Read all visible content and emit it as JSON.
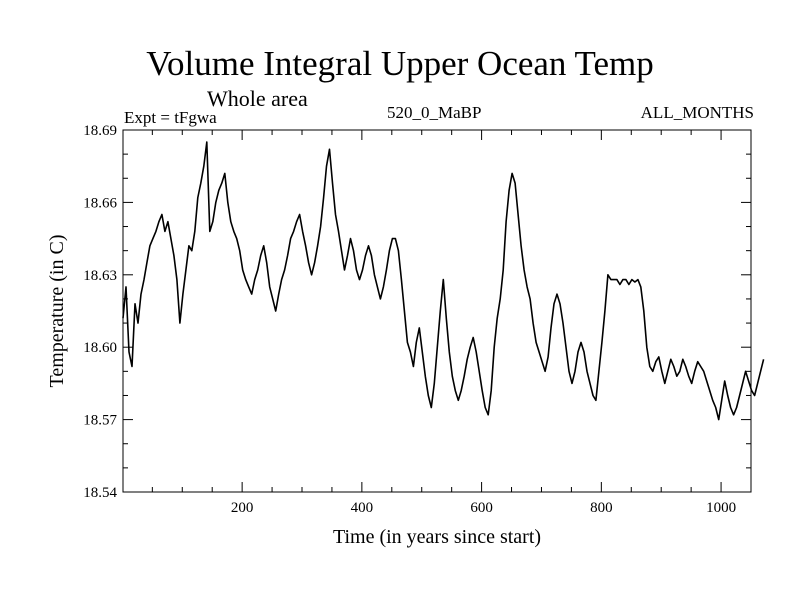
{
  "chart_data": {
    "type": "line",
    "title": "Volume Integral Upper Ocean Temp",
    "subtitle": "Whole area",
    "experiment": "Expt = tFgwa",
    "period": "520_0_MaBP",
    "months": "ALL_MONTHS",
    "xlabel": "Time (in years since start)",
    "ylabel": "Temperature (in C)",
    "xlim": [
      1,
      1050
    ],
    "ylim": [
      18.54,
      18.69
    ],
    "x_ticks": [
      200,
      400,
      600,
      800,
      1000
    ],
    "y_ticks": [
      "18.54",
      "18.57",
      "18.60",
      "18.63",
      "18.66",
      "18.69"
    ],
    "grid": false,
    "line_color": "#000000",
    "series": [
      {
        "name": "Volume integral upper ocean temperature",
        "x_start": 1,
        "x_step": 5,
        "values": [
          18.612,
          18.625,
          18.598,
          18.592,
          18.618,
          18.61,
          18.622,
          18.628,
          18.635,
          18.642,
          18.645,
          18.648,
          18.652,
          18.655,
          18.648,
          18.652,
          18.645,
          18.638,
          18.628,
          18.61,
          18.622,
          18.632,
          18.642,
          18.64,
          18.648,
          18.662,
          18.668,
          18.675,
          18.685,
          18.648,
          18.652,
          18.66,
          18.665,
          18.668,
          18.672,
          18.66,
          18.652,
          18.648,
          18.645,
          18.64,
          18.632,
          18.628,
          18.625,
          18.622,
          18.628,
          18.632,
          18.638,
          18.642,
          18.635,
          18.625,
          18.62,
          18.615,
          18.622,
          18.628,
          18.632,
          18.638,
          18.645,
          18.648,
          18.652,
          18.655,
          18.648,
          18.642,
          18.635,
          18.63,
          18.635,
          18.642,
          18.65,
          18.662,
          18.675,
          18.682,
          18.668,
          18.655,
          18.648,
          18.64,
          18.632,
          18.638,
          18.645,
          18.64,
          18.632,
          18.628,
          18.632,
          18.638,
          18.642,
          18.638,
          18.63,
          18.625,
          18.62,
          18.625,
          18.632,
          18.64,
          18.645,
          18.645,
          18.64,
          18.628,
          18.615,
          18.602,
          18.598,
          18.592,
          18.602,
          18.608,
          18.598,
          18.588,
          18.58,
          18.575,
          18.585,
          18.6,
          18.615,
          18.628,
          18.612,
          18.598,
          18.588,
          18.582,
          18.578,
          18.582,
          18.588,
          18.595,
          18.6,
          18.604,
          18.598,
          18.59,
          18.582,
          18.575,
          18.572,
          18.582,
          18.6,
          18.612,
          18.62,
          18.632,
          18.652,
          18.665,
          18.672,
          18.668,
          18.655,
          18.642,
          18.632,
          18.625,
          18.62,
          18.61,
          18.602,
          18.598,
          18.594,
          18.59,
          18.596,
          18.608,
          18.618,
          18.622,
          18.618,
          18.61,
          18.6,
          18.59,
          18.585,
          18.59,
          18.598,
          18.602,
          18.598,
          18.59,
          18.585,
          18.58,
          18.578,
          18.59,
          18.602,
          18.615,
          18.63,
          18.628,
          18.628,
          18.628,
          18.626,
          18.628,
          18.628,
          18.626,
          18.628,
          18.627,
          18.628,
          18.625,
          18.615,
          18.6,
          18.592,
          18.59,
          18.594,
          18.596,
          18.59,
          18.585,
          18.59,
          18.595,
          18.592,
          18.588,
          18.59,
          18.595,
          18.592,
          18.588,
          18.585,
          18.59,
          18.594,
          18.592,
          18.59,
          18.586,
          18.582,
          18.578,
          18.575,
          18.57,
          18.578,
          18.586,
          18.58,
          18.575,
          18.572,
          18.575,
          18.58,
          18.585,
          18.59,
          18.586,
          18.582,
          18.58,
          18.585,
          18.59,
          18.595
        ]
      }
    ]
  }
}
